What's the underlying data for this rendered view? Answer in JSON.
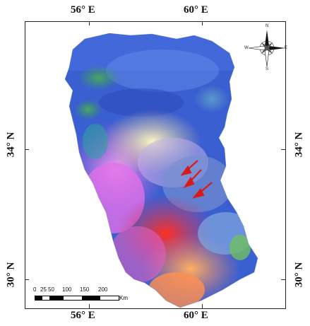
{
  "map": {
    "lon_labels_top": [
      "56° E",
      "60° E"
    ],
    "lon_labels_bottom": [
      "56° E",
      "60° E"
    ],
    "lat_labels_left": [
      "34° N",
      "30° N"
    ],
    "lat_labels_right": [
      "34° N",
      "30° N"
    ],
    "scale": {
      "ticks": [
        "0",
        "25",
        "50",
        "100",
        "150",
        "200"
      ],
      "unit": "Km"
    },
    "compass": {
      "n": "N",
      "s": "S",
      "e": "E",
      "w": "W"
    },
    "colors": {
      "north_blue": "#3a5fd0",
      "green": "#3a9a5a",
      "pink": "#f080e0",
      "yellow": "#f4f0a0",
      "red": "#e83a2a",
      "orange": "#f89a40",
      "arrow": "#d81a1a"
    }
  }
}
